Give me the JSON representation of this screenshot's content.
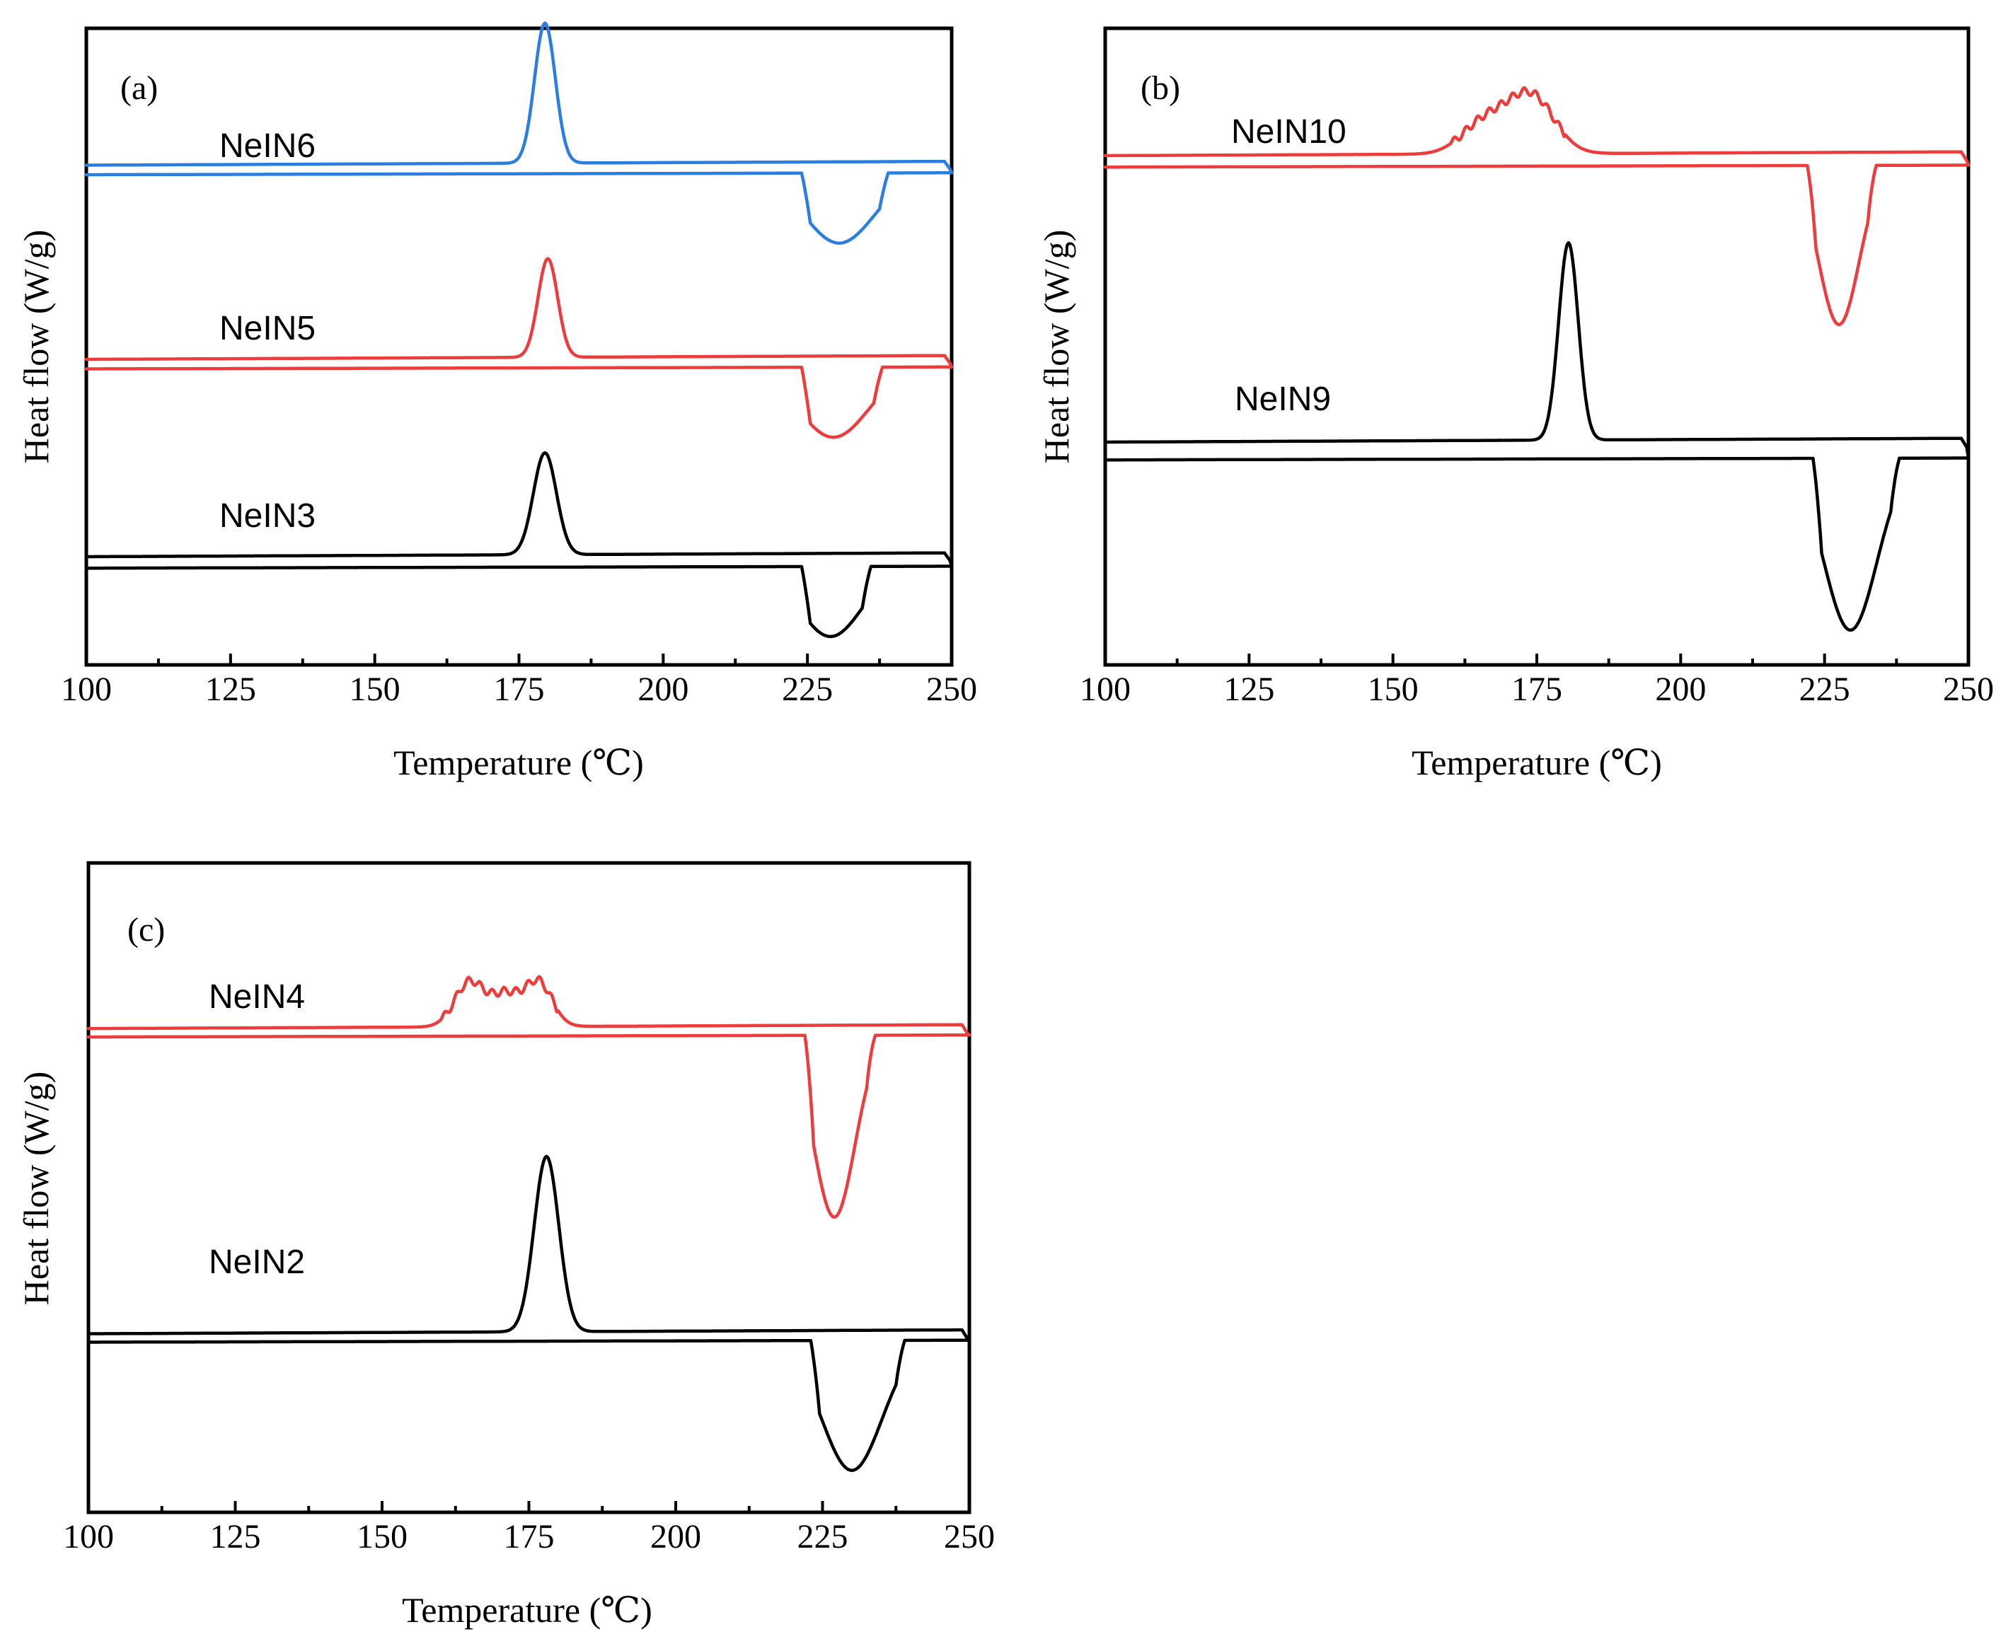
{
  "chart_data": [
    {
      "type": "line",
      "panel_label": "(a)",
      "xlabel": "Temperature (℃)",
      "ylabel": "Heat flow (W/g)",
      "xlim": [
        100,
        250
      ],
      "xticks": [
        "100",
        "125",
        "150",
        "175",
        "200",
        "225",
        "250"
      ],
      "ylim": [
        0,
        100
      ],
      "grid": false,
      "series": [
        {
          "name": "NeIN6",
          "color": "#2a7de1",
          "cooling": {
            "baseline": 78.5,
            "peaks": [
              {
                "center": 179.5,
                "height": 22,
                "width": 1.8
              }
            ],
            "end_hook": -1.5
          },
          "heating": {
            "baseline": 77.3,
            "dips": [
              {
                "center": 230.5,
                "depth": 11,
                "width": 4.5
              }
            ],
            "dip_range": [
              224,
              239
            ]
          }
        },
        {
          "name": "NeIN5",
          "color": "#ee3b3b",
          "cooling": {
            "baseline": 48.0,
            "peaks": [
              {
                "center": 180.0,
                "height": 15.5,
                "width": 1.7
              }
            ],
            "end_hook": -1.5
          },
          "heating": {
            "baseline": 46.8,
            "dips": [
              {
                "center": 229.5,
                "depth": 11,
                "width": 4.5
              }
            ],
            "dip_range": [
              224,
              238
            ]
          }
        },
        {
          "name": "NeIN3",
          "color": "#000000",
          "cooling": {
            "baseline": 17.0,
            "peaks": [
              {
                "center": 179.5,
                "height": 16,
                "width": 2.0
              }
            ],
            "end_hook": -1.5
          },
          "heating": {
            "baseline": 15.5,
            "dips": [
              {
                "center": 229.0,
                "depth": 11,
                "width": 4.0
              }
            ],
            "dip_range": [
              224,
              236
            ]
          }
        }
      ]
    },
    {
      "type": "line",
      "panel_label": "(b)",
      "xlabel": "Temperature (℃)",
      "ylabel": "Heat flow (W/g)",
      "xlim": [
        100,
        250
      ],
      "xticks": [
        "100",
        "125",
        "150",
        "175",
        "200",
        "225",
        "250"
      ],
      "ylim": [
        0,
        100
      ],
      "grid": false,
      "series": [
        {
          "name": "NeIN10",
          "color": "#ee3b3b",
          "cooling": {
            "baseline": 80.0,
            "peaks": [
              {
                "center": 166,
                "height": 5,
                "width": 4
              },
              {
                "center": 174,
                "height": 9,
                "width": 4
              }
            ],
            "end_hook": -2
          },
          "heating": {
            "baseline": 78.5,
            "dips": [
              {
                "center": 227.5,
                "depth": 25,
                "width": 2.6
              }
            ],
            "dip_range": [
              222,
              234
            ]
          }
        },
        {
          "name": "NeIN9",
          "color": "#000000",
          "cooling": {
            "baseline": 35.0,
            "peaks": [
              {
                "center": 180.5,
                "height": 31,
                "width": 1.7
              }
            ],
            "end_hook": -2
          },
          "heating": {
            "baseline": 32.5,
            "dips": [
              {
                "center": 229.5,
                "depth": 27,
                "width": 3.4
              }
            ],
            "dip_range": [
              223,
              238
            ]
          }
        }
      ]
    },
    {
      "type": "line",
      "panel_label": "(c)",
      "xlabel": "Temperature (℃)",
      "ylabel": "Heat flow (W/g)",
      "xlim": [
        100,
        250
      ],
      "xticks": [
        "100",
        "125",
        "150",
        "175",
        "200",
        "225",
        "250"
      ],
      "ylim": [
        0,
        100
      ],
      "grid": false,
      "series": [
        {
          "name": "NeIN4",
          "color": "#ee3b3b",
          "cooling": {
            "baseline": 74.5,
            "peaks": [
              {
                "center": 165,
                "height": 7,
                "width": 2.6
              },
              {
                "center": 176.5,
                "height": 7,
                "width": 2.4
              },
              {
                "center": 171,
                "height": 4.5,
                "width": 2.2
              }
            ],
            "end_hook": -2
          },
          "heating": {
            "baseline": 73.5,
            "dips": [
              {
                "center": 227.0,
                "depth": 28,
                "width": 2.6
              }
            ],
            "dip_range": [
              222,
              234
            ]
          }
        },
        {
          "name": "NeIN2",
          "color": "#000000",
          "cooling": {
            "baseline": 27.5,
            "peaks": [
              {
                "center": 178.0,
                "height": 27,
                "width": 2.1
              }
            ],
            "end_hook": -2
          },
          "heating": {
            "baseline": 26.5,
            "dips": [
              {
                "center": 230.0,
                "depth": 20,
                "width": 3.8
              }
            ],
            "dip_range": [
              223,
              239
            ]
          }
        }
      ]
    }
  ]
}
